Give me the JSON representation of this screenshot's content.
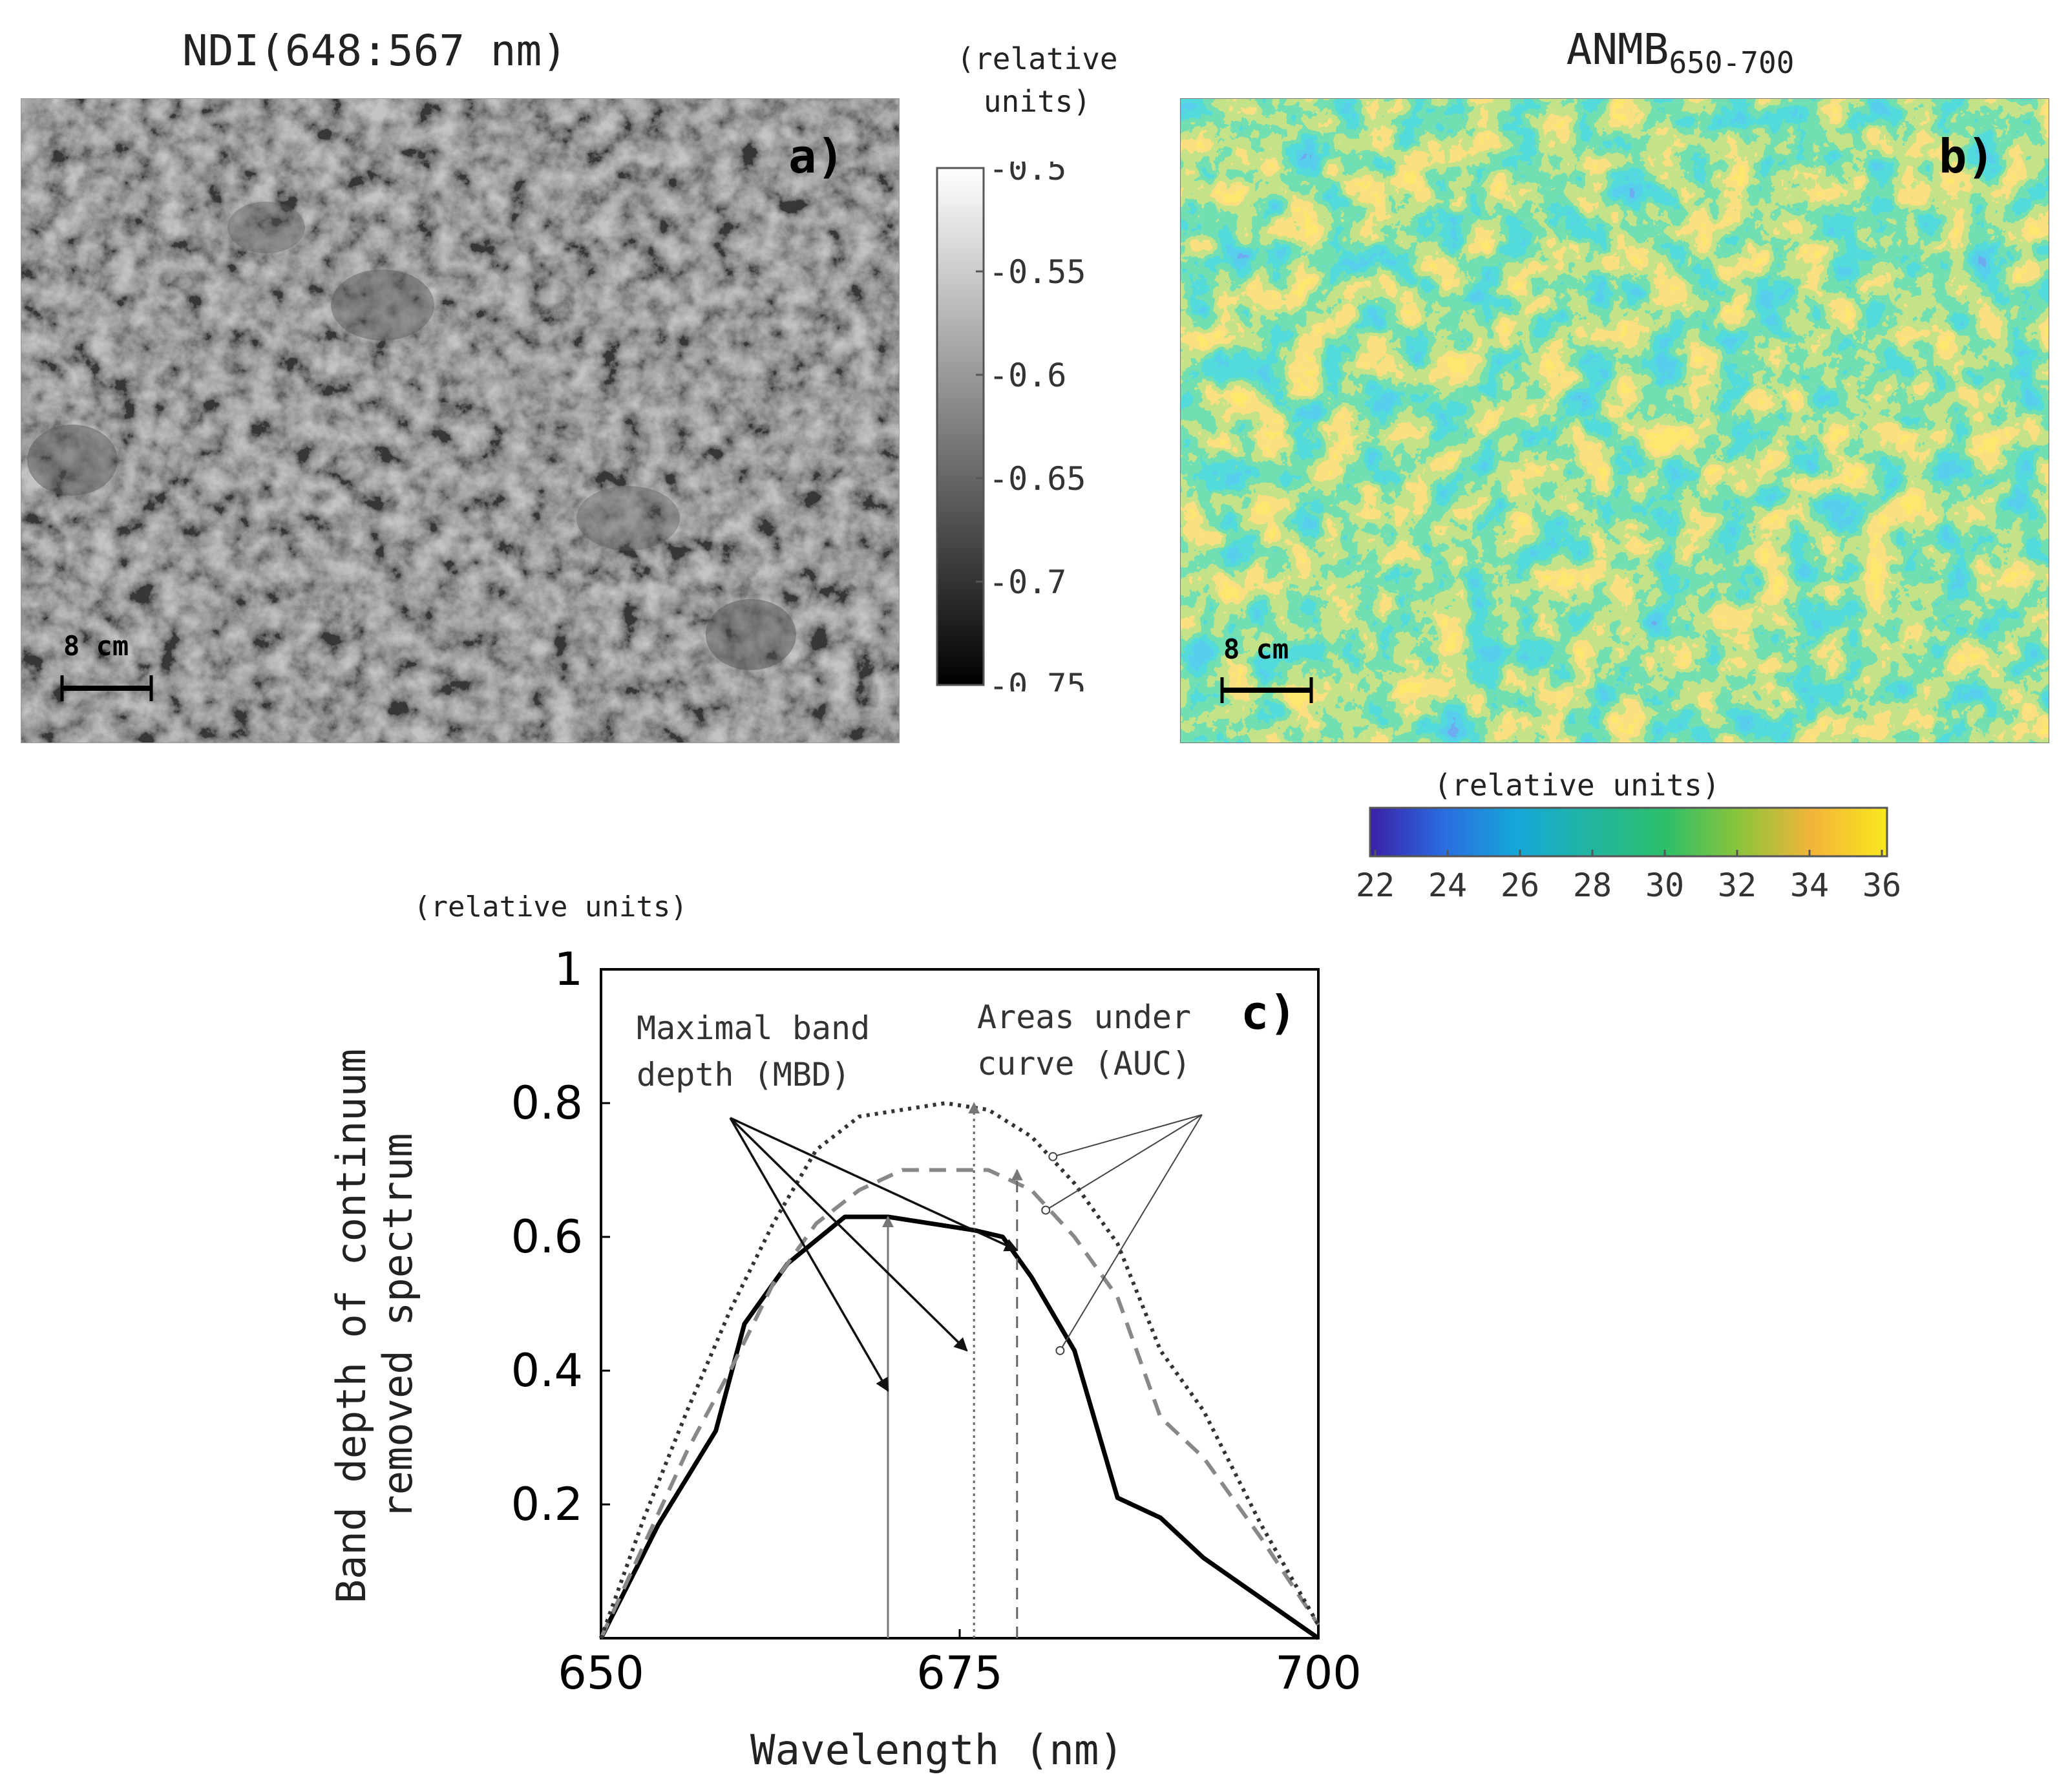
{
  "panel_a": {
    "title": "NDI(648:567 nm)",
    "label": "a)",
    "scalebar": "8 cm",
    "colorbar": {
      "unit": "(relative units)",
      "ticks": [
        "-0.5",
        "-0.55",
        "-0.6",
        "-0.65",
        "-0.7",
        "-0.75"
      ],
      "colors": {
        "top": "#ffffff",
        "bottom": "#000000"
      }
    }
  },
  "panel_b": {
    "title_main": "ANMB",
    "title_sub": "650-700",
    "label": "b)",
    "scalebar": "8 cm",
    "colorbar": {
      "unit": "(relative units)",
      "ticks": [
        "22",
        "24",
        "26",
        "28",
        "30",
        "32",
        "34",
        "36"
      ],
      "colors": [
        "#3b1fa8",
        "#2a6de0",
        "#15a8d8",
        "#22b5a0",
        "#2cbf6a",
        "#8cc43a",
        "#f4b43a",
        "#f9e81e"
      ]
    }
  },
  "panel_c": {
    "label": "c)",
    "unit_label": "(relative units)",
    "annotation_mbd": "Maximal band\ndepth (MBD)",
    "annotation_auc": "Areas under\ncurve (AUC)"
  },
  "chart_data": {
    "type": "line",
    "title": "",
    "xlabel": "Wavelength (nm)",
    "ylabel": "Band depth of continuum\nremoved spectrum",
    "xlim": [
      650,
      700
    ],
    "ylim": [
      0,
      1
    ],
    "xticks": [
      "650",
      "675",
      "700"
    ],
    "yticks": [
      "0.2",
      "0.4",
      "0.6",
      "0.8",
      "1"
    ],
    "series": [
      {
        "name": "solid",
        "style": "solid",
        "color": "#000000",
        "x": [
          650,
          654,
          658,
          660,
          663,
          667,
          670,
          673,
          676,
          678,
          680,
          683,
          686,
          689,
          692,
          696,
          700
        ],
        "y": [
          0.0,
          0.17,
          0.31,
          0.47,
          0.56,
          0.63,
          0.63,
          0.62,
          0.61,
          0.6,
          0.54,
          0.43,
          0.21,
          0.18,
          0.12,
          0.06,
          0.0
        ]
      },
      {
        "name": "dashed",
        "style": "dashed",
        "color": "#888888",
        "x": [
          650,
          653,
          656,
          659,
          662,
          665,
          668,
          671,
          674,
          677,
          680,
          683,
          686,
          689,
          692,
          696,
          700
        ],
        "y": [
          0.0,
          0.14,
          0.28,
          0.4,
          0.53,
          0.62,
          0.67,
          0.7,
          0.7,
          0.7,
          0.67,
          0.6,
          0.51,
          0.33,
          0.27,
          0.15,
          0.02
        ]
      },
      {
        "name": "dotted",
        "style": "dotted",
        "color": "#333333",
        "x": [
          650,
          653,
          656,
          659,
          662,
          665,
          668,
          671,
          674,
          677,
          680,
          683,
          686,
          689,
          692,
          696,
          700
        ],
        "y": [
          0.0,
          0.18,
          0.34,
          0.49,
          0.62,
          0.73,
          0.78,
          0.79,
          0.8,
          0.79,
          0.75,
          0.68,
          0.59,
          0.43,
          0.34,
          0.17,
          0.02
        ]
      }
    ],
    "mbd_markers": [
      {
        "x": 670,
        "y": 0.63,
        "style": "solid"
      },
      {
        "x": 676,
        "y": 0.8,
        "style": "dotted"
      },
      {
        "x": 679,
        "y": 0.7,
        "style": "dashed"
      }
    ]
  }
}
